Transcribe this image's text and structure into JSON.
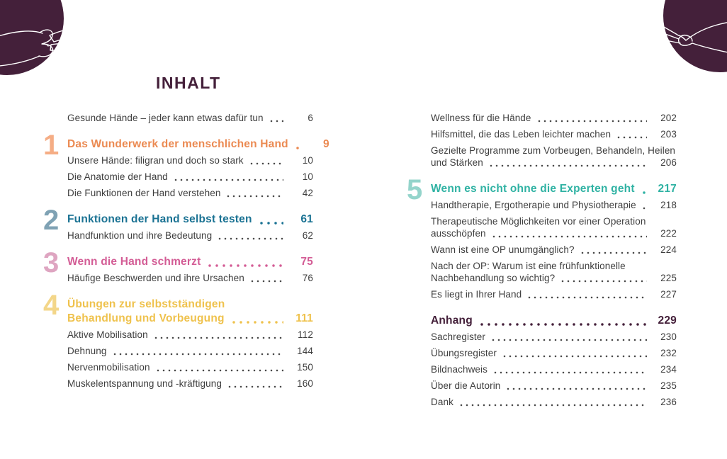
{
  "page_title": "INHALT",
  "decoration": {
    "circle_color": "#44203A",
    "line_color": "#ffffff",
    "top_left_art": "hands-line-art",
    "top_right_art": "hand-pinch-line-art"
  },
  "colors": {
    "body_text": "#3e3e3e",
    "title": "#44203A",
    "section1_number": "#F5AD85",
    "section1_title": "#EB8A52",
    "section2_number": "#7FA2B4",
    "section2_title": "#1A7293",
    "section3_number": "#DEA5C1",
    "section3_title": "#D35C95",
    "section4_number": "#F3D689",
    "section4_title": "#EFC24D",
    "section5_number": "#94D4CB",
    "section5_title": "#2FB2A3",
    "anhang_title": "#44203A"
  },
  "columns": {
    "left": [
      {
        "entries": [
          {
            "lines": [
              "Gesunde Hände – jeder kann etwas dafür tun"
            ],
            "page": "6"
          }
        ]
      },
      {
        "number": "1",
        "number_color": "#F5AD85",
        "title_color": "#EB8A52",
        "title_lines": [
          "Das Wunderwerk der menschlichen Hand"
        ],
        "title_page": "9",
        "entries": [
          {
            "lines": [
              "Unsere Hände: filigran und doch so stark"
            ],
            "page": "10"
          },
          {
            "lines": [
              "Die Anatomie der Hand"
            ],
            "page": "10"
          },
          {
            "lines": [
              "Die Funktionen der Hand verstehen"
            ],
            "page": "42"
          }
        ]
      },
      {
        "number": "2",
        "number_color": "#7FA2B4",
        "title_color": "#1A7293",
        "title_lines": [
          "Funktionen der Hand selbst testen"
        ],
        "title_page": "61",
        "entries": [
          {
            "lines": [
              "Handfunktion und ihre Bedeutung"
            ],
            "page": "62"
          }
        ]
      },
      {
        "number": "3",
        "number_color": "#DEA5C1",
        "title_color": "#D35C95",
        "title_lines": [
          "Wenn die Hand schmerzt"
        ],
        "title_page": "75",
        "entries": [
          {
            "lines": [
              "Häufige Beschwerden und ihre Ursachen"
            ],
            "page": "76"
          }
        ]
      },
      {
        "number": "4",
        "number_color": "#F3D689",
        "title_color": "#EFC24D",
        "title_lines": [
          "Übungen zur selbstständigen",
          "Behandlung und Vorbeugung"
        ],
        "title_page": "111",
        "entries": [
          {
            "lines": [
              "Aktive Mobilisation"
            ],
            "page": "112"
          },
          {
            "lines": [
              "Dehnung"
            ],
            "page": "144"
          },
          {
            "lines": [
              "Nervenmobilisation"
            ],
            "page": "150"
          },
          {
            "lines": [
              "Muskelentspannung und -kräftigung"
            ],
            "page": "160"
          }
        ]
      }
    ],
    "right": [
      {
        "entries": [
          {
            "lines": [
              "Wellness für die Hände"
            ],
            "page": "202"
          },
          {
            "lines": [
              "Hilfsmittel, die das Leben leichter machen"
            ],
            "page": "203"
          },
          {
            "lines": [
              "Gezielte Programme zum Vorbeugen, Behandeln, Heilen",
              "und Stärken"
            ],
            "page": "206"
          }
        ]
      },
      {
        "number": "5",
        "number_color": "#94D4CB",
        "title_color": "#2FB2A3",
        "title_lines": [
          "Wenn es nicht ohne die Experten geht"
        ],
        "title_page": "217",
        "entries": [
          {
            "lines": [
              "Handtherapie, Ergotherapie und Physiotherapie"
            ],
            "page": "218"
          },
          {
            "lines": [
              "Therapeutische Möglichkeiten vor einer Operation",
              "ausschöpfen"
            ],
            "page": "222"
          },
          {
            "lines": [
              "Wann ist eine OP unumgänglich?"
            ],
            "page": "224"
          },
          {
            "lines": [
              "Nach der OP: Warum ist eine frühfunktionelle",
              "Nachbehandlung so wichtig?"
            ],
            "page": "225"
          },
          {
            "lines": [
              "Es liegt in Ihrer Hand"
            ],
            "page": "227"
          }
        ]
      },
      {
        "title_color": "#44203A",
        "title_lines": [
          "Anhang"
        ],
        "title_page": "229",
        "entries": [
          {
            "lines": [
              "Sachregister"
            ],
            "page": "230"
          },
          {
            "lines": [
              "Übungsregister"
            ],
            "page": "232"
          },
          {
            "lines": [
              "Bildnachweis"
            ],
            "page": "234"
          },
          {
            "lines": [
              "Über die Autorin"
            ],
            "page": "235"
          },
          {
            "lines": [
              "Dank"
            ],
            "page": "236"
          }
        ]
      }
    ]
  }
}
